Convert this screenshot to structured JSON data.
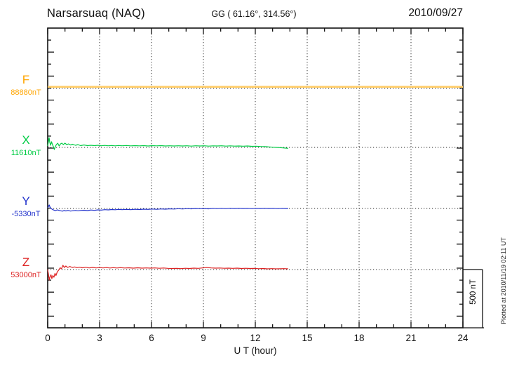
{
  "header": {
    "station": "Narsarsuaq (NAQ)",
    "coordinates": "GG ( 61.16°, 314.56°)",
    "date": "2010/09/27"
  },
  "components": [
    {
      "letter": "F",
      "value": "88880nT",
      "color": "#FFA500"
    },
    {
      "letter": "X",
      "value": "11610nT",
      "color": "#00CC44"
    },
    {
      "letter": "Y",
      "value": "-5330nT",
      "color": "#2233CC"
    },
    {
      "letter": "Z",
      "value": "53000nT",
      "color": "#DD2222"
    }
  ],
  "axis": {
    "x_label": "U T (hour)"
  },
  "scale_bar": {
    "label": "500 nT",
    "nT": 500
  },
  "footer_note": "Plotted at 2010/11/19 02:11 UT",
  "chart_data": {
    "type": "line",
    "title": "Narsarsuaq (NAQ) magnetogram",
    "date": "2010/09/27",
    "xlabel": "U T (hour)",
    "x_range": [
      0,
      24
    ],
    "x_major_ticks": [
      0,
      3,
      6,
      9,
      12,
      15,
      18,
      21,
      24
    ],
    "x_minor_step_hours": 1,
    "grid": "dotted vertical at 3h intervals, dotted horizontal at each component baseline",
    "legend_position": "left margin component labels",
    "scale_bar_nT": 500,
    "note": "points are [UT hour, offset in nT from baseline_nT]; F recorded 0-24h, X/Y/Z end near 13.9h",
    "series": [
      {
        "name": "F",
        "baseline_nT": 88880,
        "color": "#FFCC66",
        "points": [
          [
            0,
            14
          ],
          [
            24,
            14
          ]
        ]
      },
      {
        "name": "X",
        "baseline_nT": 11610,
        "color": "#00CC44",
        "points": [
          [
            0,
            12
          ],
          [
            0.05,
            54
          ],
          [
            0.08,
            84
          ],
          [
            0.12,
            42
          ],
          [
            0.17,
            18
          ],
          [
            0.22,
            48
          ],
          [
            0.28,
            24
          ],
          [
            0.33,
            6
          ],
          [
            0.38,
            -18
          ],
          [
            0.44,
            6
          ],
          [
            0.5,
            24
          ],
          [
            0.58,
            36
          ],
          [
            0.66,
            12
          ],
          [
            0.74,
            30
          ],
          [
            0.82,
            36
          ],
          [
            0.9,
            24
          ],
          [
            1.0,
            36
          ],
          [
            1.1,
            24
          ],
          [
            1.2,
            30
          ],
          [
            1.32,
            21
          ],
          [
            1.45,
            27
          ],
          [
            1.6,
            18
          ],
          [
            1.75,
            24
          ],
          [
            1.9,
            15
          ],
          [
            2.1,
            21
          ],
          [
            2.3,
            15
          ],
          [
            2.5,
            18
          ],
          [
            2.7,
            15
          ],
          [
            2.9,
            18
          ],
          [
            3.1,
            14
          ],
          [
            3.3,
            17
          ],
          [
            3.5,
            14
          ],
          [
            3.7,
            16
          ],
          [
            3.9,
            13
          ],
          [
            4.1,
            16
          ],
          [
            4.3,
            14
          ],
          [
            4.55,
            16
          ],
          [
            4.8,
            13
          ],
          [
            5.05,
            15
          ],
          [
            5.3,
            13
          ],
          [
            5.55,
            15
          ],
          [
            5.8,
            12
          ],
          [
            6.05,
            15
          ],
          [
            6.3,
            13
          ],
          [
            6.55,
            15
          ],
          [
            6.8,
            12
          ],
          [
            7.05,
            14
          ],
          [
            7.3,
            12
          ],
          [
            7.55,
            14
          ],
          [
            7.8,
            12
          ],
          [
            8.05,
            14
          ],
          [
            8.3,
            11
          ],
          [
            8.55,
            14
          ],
          [
            8.8,
            12
          ],
          [
            9.05,
            14
          ],
          [
            9.3,
            11
          ],
          [
            9.55,
            13
          ],
          [
            9.8,
            12
          ],
          [
            10.05,
            14
          ],
          [
            10.3,
            11
          ],
          [
            10.55,
            13
          ],
          [
            10.8,
            11
          ],
          [
            11.05,
            12
          ],
          [
            11.3,
            10
          ],
          [
            11.55,
            12
          ],
          [
            11.8,
            9
          ],
          [
            12.05,
            10
          ],
          [
            12.3,
            8
          ],
          [
            12.55,
            7
          ],
          [
            12.8,
            4
          ],
          [
            13.0,
            2
          ],
          [
            13.2,
            0
          ],
          [
            13.4,
            -2
          ],
          [
            13.6,
            -4
          ],
          [
            13.75,
            -6
          ],
          [
            13.9,
            -8
          ]
        ]
      },
      {
        "name": "Y",
        "baseline_nT": -5330,
        "color": "#2233CC",
        "points": [
          [
            0,
            6
          ],
          [
            0.05,
            18
          ],
          [
            0.09,
            30
          ],
          [
            0.14,
            9
          ],
          [
            0.2,
            0
          ],
          [
            0.28,
            -9
          ],
          [
            0.36,
            -14
          ],
          [
            0.45,
            -18
          ],
          [
            0.55,
            -12
          ],
          [
            0.65,
            -16
          ],
          [
            0.75,
            -20
          ],
          [
            0.85,
            -23
          ],
          [
            0.95,
            -18
          ],
          [
            1.05,
            -21
          ],
          [
            1.18,
            -17
          ],
          [
            1.32,
            -22
          ],
          [
            1.46,
            -19
          ],
          [
            1.6,
            -17
          ],
          [
            1.75,
            -20
          ],
          [
            1.9,
            -17
          ],
          [
            2.1,
            -15
          ],
          [
            2.3,
            -18
          ],
          [
            2.5,
            -13
          ],
          [
            2.7,
            -16
          ],
          [
            2.9,
            -12
          ],
          [
            3.1,
            -14
          ],
          [
            3.3,
            -10
          ],
          [
            3.5,
            -12
          ],
          [
            3.7,
            -9
          ],
          [
            3.9,
            -11
          ],
          [
            4.1,
            -8
          ],
          [
            4.3,
            -10
          ],
          [
            4.55,
            -8
          ],
          [
            4.8,
            -10
          ],
          [
            5.05,
            -7
          ],
          [
            5.3,
            -9
          ],
          [
            5.55,
            -6
          ],
          [
            5.8,
            -8
          ],
          [
            6.05,
            -5
          ],
          [
            6.3,
            -7
          ],
          [
            6.55,
            -4
          ],
          [
            6.8,
            -6
          ],
          [
            7.05,
            -3
          ],
          [
            7.3,
            -5
          ],
          [
            7.55,
            -2
          ],
          [
            7.8,
            -4
          ],
          [
            8.05,
            -1
          ],
          [
            8.3,
            -3
          ],
          [
            8.55,
            0
          ],
          [
            8.8,
            -2
          ],
          [
            9.05,
            -1
          ],
          [
            9.3,
            -3
          ],
          [
            9.55,
            1
          ],
          [
            9.8,
            -1
          ],
          [
            10.05,
            1
          ],
          [
            10.3,
            -1
          ],
          [
            10.55,
            2
          ],
          [
            10.8,
            0
          ],
          [
            11.05,
            2
          ],
          [
            11.3,
            0
          ],
          [
            11.55,
            1
          ],
          [
            11.8,
            -1
          ],
          [
            12.05,
            1
          ],
          [
            12.3,
            0
          ],
          [
            12.55,
            2
          ],
          [
            12.8,
            0
          ],
          [
            13.05,
            1
          ],
          [
            13.3,
            -1
          ],
          [
            13.55,
            1
          ],
          [
            13.75,
            0
          ],
          [
            13.9,
            0
          ]
        ]
      },
      {
        "name": "Z",
        "baseline_nT": 53000,
        "color": "#DD2222",
        "points": [
          [
            0,
            0
          ],
          [
            0.04,
            -36
          ],
          [
            0.09,
            -90
          ],
          [
            0.14,
            -57
          ],
          [
            0.19,
            -45
          ],
          [
            0.24,
            -78
          ],
          [
            0.3,
            -51
          ],
          [
            0.36,
            -66
          ],
          [
            0.42,
            -33
          ],
          [
            0.48,
            -51
          ],
          [
            0.55,
            -21
          ],
          [
            0.63,
            -6
          ],
          [
            0.72,
            15
          ],
          [
            0.8,
            6
          ],
          [
            0.88,
            36
          ],
          [
            0.96,
            18
          ],
          [
            1.05,
            30
          ],
          [
            1.15,
            18
          ],
          [
            1.28,
            26
          ],
          [
            1.42,
            18
          ],
          [
            1.56,
            22
          ],
          [
            1.7,
            16
          ],
          [
            1.85,
            20
          ],
          [
            2.0,
            15
          ],
          [
            2.2,
            19
          ],
          [
            2.4,
            14
          ],
          [
            2.6,
            18
          ],
          [
            2.8,
            14
          ],
          [
            3.0,
            17
          ],
          [
            3.2,
            14
          ],
          [
            3.4,
            17
          ],
          [
            3.6,
            13
          ],
          [
            3.8,
            16
          ],
          [
            4.0,
            13
          ],
          [
            4.2,
            16
          ],
          [
            4.45,
            13
          ],
          [
            4.7,
            15
          ],
          [
            4.95,
            12
          ],
          [
            5.2,
            15
          ],
          [
            5.45,
            12
          ],
          [
            5.7,
            14
          ],
          [
            5.95,
            12
          ],
          [
            6.2,
            14
          ],
          [
            6.45,
            11
          ],
          [
            6.7,
            13
          ],
          [
            6.95,
            10
          ],
          [
            7.2,
            9
          ],
          [
            7.45,
            10
          ],
          [
            7.7,
            8
          ],
          [
            7.95,
            11
          ],
          [
            8.2,
            9
          ],
          [
            8.45,
            12
          ],
          [
            8.7,
            10
          ],
          [
            8.95,
            14
          ],
          [
            9.2,
            17
          ],
          [
            9.45,
            14
          ],
          [
            9.7,
            12
          ],
          [
            9.95,
            13
          ],
          [
            10.2,
            11
          ],
          [
            10.45,
            12
          ],
          [
            10.7,
            10
          ],
          [
            10.95,
            12
          ],
          [
            11.2,
            9
          ],
          [
            11.45,
            11
          ],
          [
            11.7,
            9
          ],
          [
            11.95,
            10
          ],
          [
            12.2,
            7
          ],
          [
            12.45,
            9
          ],
          [
            12.7,
            6
          ],
          [
            12.95,
            8
          ],
          [
            13.2,
            6
          ],
          [
            13.45,
            7
          ],
          [
            13.65,
            8
          ],
          [
            13.9,
            6
          ]
        ]
      }
    ]
  }
}
